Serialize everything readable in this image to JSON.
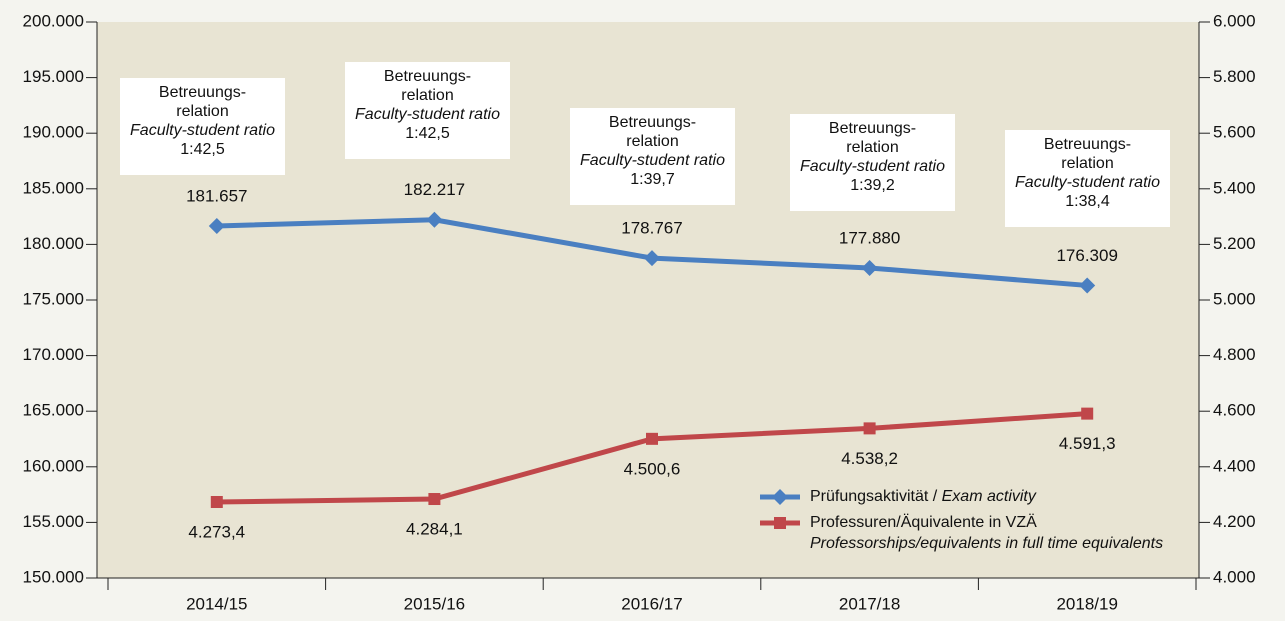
{
  "chart_data": {
    "type": "line",
    "categories": [
      "2014/15",
      "2015/16",
      "2016/17",
      "2017/18",
      "2018/19"
    ],
    "series": [
      {
        "name": "Prüfungsaktivität / Exam activity",
        "color": "#4a7fc1",
        "marker": "diamond",
        "values": [
          181657,
          182217,
          178767,
          177880,
          176309
        ],
        "value_labels": [
          "181.657",
          "182.217",
          "178.767",
          "177.880",
          "176.309"
        ]
      },
      {
        "name": "Professuren/Äquivalente in VZÄ",
        "name_en": "Professorships/equivalents in full time equivalents",
        "color": "#c0474a",
        "marker": "square",
        "axis": "y2",
        "values": [
          4273.4,
          4284.1,
          4500.6,
          4538.2,
          4591.3
        ],
        "value_labels": [
          "4.273,4",
          "4.284,1",
          "4.500,6",
          "4.538,2",
          "4.591,3"
        ]
      }
    ],
    "ylim": [
      150000,
      200000
    ],
    "yticks": [
      {
        "value": 150000,
        "label": "150.000"
      },
      {
        "value": 155000,
        "label": "155.000"
      },
      {
        "value": 160000,
        "label": "160.000"
      },
      {
        "value": 165000,
        "label": "165.000"
      },
      {
        "value": 170000,
        "label": "170.000"
      },
      {
        "value": 175000,
        "label": "175.000"
      },
      {
        "value": 180000,
        "label": "180.000"
      },
      {
        "value": 185000,
        "label": "185.000"
      },
      {
        "value": 190000,
        "label": "190.000"
      },
      {
        "value": 195000,
        "label": "195.000"
      },
      {
        "value": 200000,
        "label": "200.000"
      }
    ],
    "y2lim": [
      4000,
      6000
    ],
    "y2ticks": [
      {
        "value": 4000,
        "label": "4.000"
      },
      {
        "value": 4200,
        "label": "4.200"
      },
      {
        "value": 4400,
        "label": "4.400"
      },
      {
        "value": 4600,
        "label": "4.600"
      },
      {
        "value": 4800,
        "label": "4.800"
      },
      {
        "value": 5000,
        "label": "5.000"
      },
      {
        "value": 5200,
        "label": "5.200"
      },
      {
        "value": 5400,
        "label": "5.400"
      },
      {
        "value": 5600,
        "label": "5.600"
      },
      {
        "value": 5800,
        "label": "5.800"
      },
      {
        "value": 6000,
        "label": "6.000"
      }
    ],
    "annotations": [
      {
        "lines": [
          "Betreuungs-",
          "relation"
        ],
        "italic": "Faculty-student ratio",
        "ratio": "1:42,5"
      },
      {
        "lines": [
          "Betreuungs-",
          "relation"
        ],
        "italic": "Faculty-student ratio",
        "ratio": "1:42,5"
      },
      {
        "lines": [
          "Betreuungs-",
          "relation"
        ],
        "italic": "Faculty-student ratio",
        "ratio": "1:39,7"
      },
      {
        "lines": [
          "Betreuungs-",
          "relation"
        ],
        "italic": "Faculty-student ratio",
        "ratio": "1:39,2"
      },
      {
        "lines": [
          "Betreuungs-",
          "relation"
        ],
        "italic": "Faculty-student ratio",
        "ratio": "1:38,4"
      }
    ],
    "legend": "lower right"
  }
}
